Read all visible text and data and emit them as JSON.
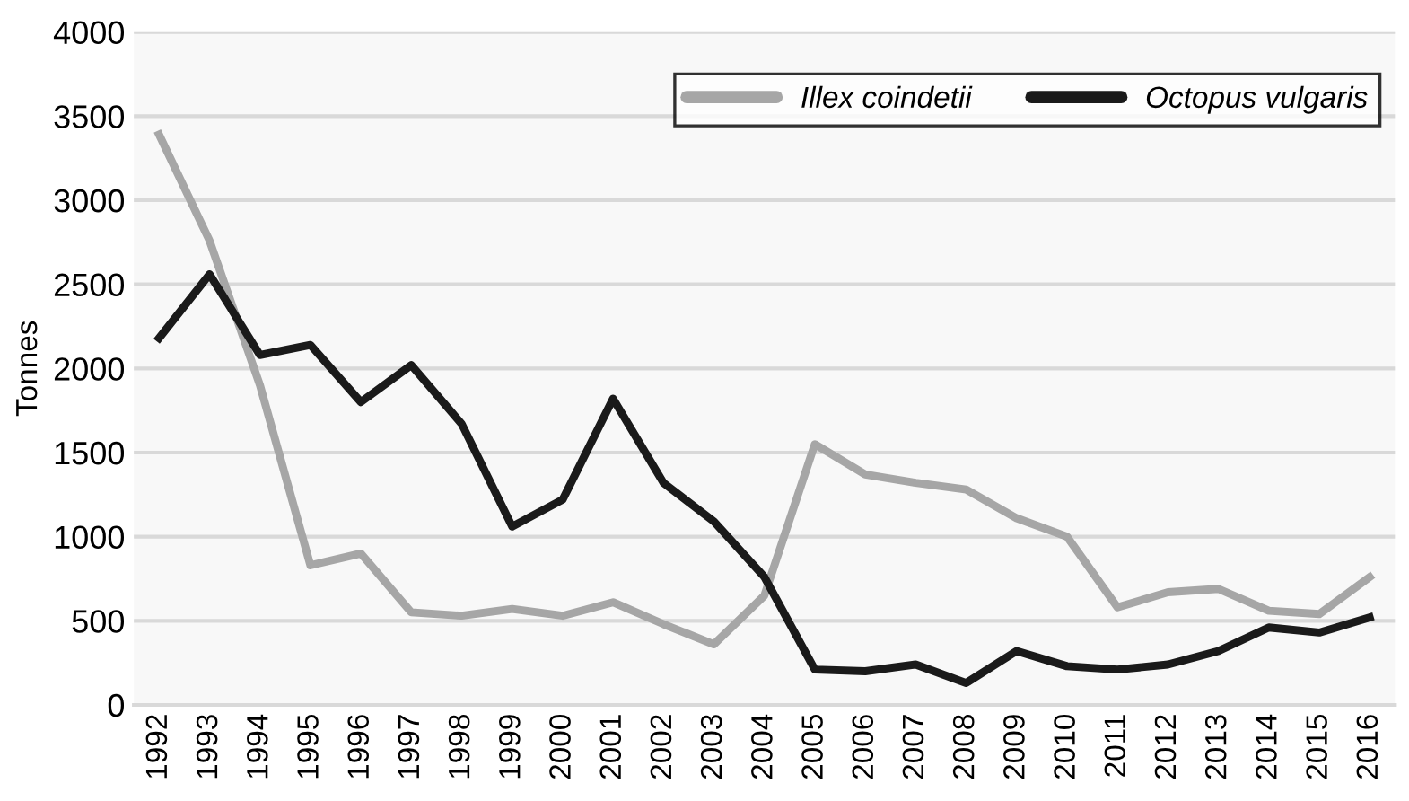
{
  "chart_data": {
    "type": "line",
    "ylabel": "Tonnes",
    "categories": [
      "1992",
      "1993",
      "1994",
      "1995",
      "1996",
      "1997",
      "1998",
      "1999",
      "2000",
      "2001",
      "2002",
      "2003",
      "2004",
      "2005",
      "2006",
      "2007",
      "2008",
      "2009",
      "2010",
      "2011",
      "2012",
      "2013",
      "2014",
      "2015",
      "2016"
    ],
    "series": [
      {
        "name": "Illex coindetii",
        "color": "#a6a6a6",
        "values": [
          3390,
          2760,
          1900,
          830,
          900,
          550,
          530,
          570,
          530,
          610,
          480,
          360,
          650,
          1550,
          1370,
          1320,
          1280,
          1110,
          1000,
          580,
          670,
          690,
          560,
          540,
          760
        ]
      },
      {
        "name": "Octopus vulgaris",
        "color": "#1a1a1a",
        "values": [
          2180,
          2560,
          2080,
          2140,
          1800,
          2020,
          1670,
          1060,
          1220,
          1820,
          1320,
          1090,
          760,
          210,
          200,
          240,
          130,
          320,
          230,
          210,
          240,
          320,
          460,
          430,
          520
        ]
      }
    ],
    "ylim": [
      0,
      4000
    ],
    "yticks": [
      0,
      500,
      1000,
      1500,
      2000,
      2500,
      3000,
      3500,
      4000
    ],
    "grid": "y",
    "legend": "top right",
    "marker": "none",
    "line_style": "solid"
  }
}
